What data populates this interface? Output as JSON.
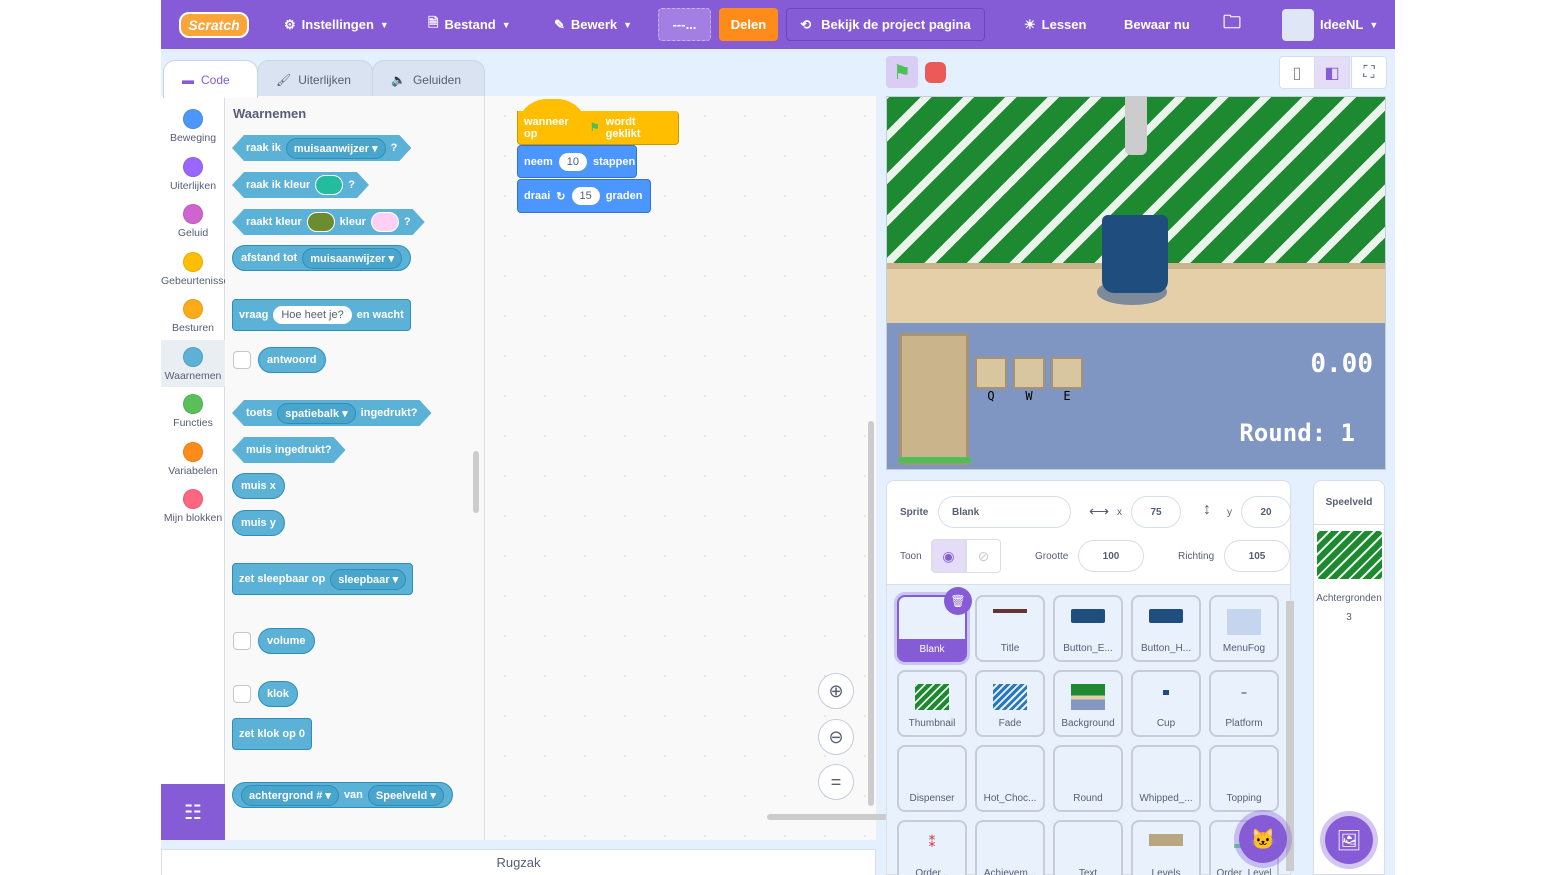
{
  "menu": {
    "logo": "Scratch",
    "settings": "Instellingen",
    "file": "Bestand",
    "edit": "Bewerk",
    "title_field": "---...",
    "share": "Delen",
    "project_page": "Bekijk de project pagina",
    "tutorials": "Lessen",
    "save": "Bewaar nu",
    "user": "IdeeNL"
  },
  "tabs": [
    {
      "label": "Code"
    },
    {
      "label": "Uiterlijken"
    },
    {
      "label": "Geluiden"
    }
  ],
  "categories": [
    {
      "label": "Beweging",
      "color": "#4c97ff"
    },
    {
      "label": "Uiterlijken",
      "color": "#9966ff"
    },
    {
      "label": "Geluid",
      "color": "#cf63cf"
    },
    {
      "label": "Gebeurtenissen",
      "color": "#ffbf00"
    },
    {
      "label": "Besturen",
      "color": "#ffab19"
    },
    {
      "label": "Waarnemen",
      "color": "#5cb1d6"
    },
    {
      "label": "Functies",
      "color": "#59c059"
    },
    {
      "label": "Variabelen",
      "color": "#ff8c1a"
    },
    {
      "label": "Mijn blokken",
      "color": "#ff6680"
    }
  ],
  "palette": {
    "heading": "Waarnemen",
    "touching": {
      "a": "raak ik",
      "dd": "muisaanwijzer",
      "q": "?"
    },
    "touching_color": {
      "a": "raak ik kleur",
      "color": "#24bc9e",
      "q": "?"
    },
    "color_touching": {
      "a": "raakt kleur",
      "color1": "#6b8c2f",
      "b": "kleur",
      "color2": "#ffd0f4",
      "q": "?"
    },
    "distance": {
      "a": "afstand tot",
      "dd": "muisaanwijzer"
    },
    "ask": {
      "a": "vraag",
      "input": "Hoe heet je?",
      "b": "en wacht"
    },
    "answer": "antwoord",
    "key": {
      "a": "toets",
      "dd": "spatiebalk",
      "b": "ingedrukt?"
    },
    "mouse_down": "muis ingedrukt?",
    "mouse_x": "muis x",
    "mouse_y": "muis y",
    "drag": {
      "a": "zet sleepbaar op",
      "dd": "sleepbaar"
    },
    "loudness": "volume",
    "timer": "klok",
    "reset_timer": "zet klok op 0",
    "backdrop": {
      "dd": "achtergrond #",
      "a": "van",
      "dd2": "Speelveld"
    }
  },
  "script": {
    "hat": {
      "a": "wanneer op",
      "b": "wordt geklikt"
    },
    "move": {
      "a": "neem",
      "val": "10",
      "b": "stappen"
    },
    "turn": {
      "a": "draai",
      "val": "15",
      "b": "graden"
    }
  },
  "rugzak": "Rugzak",
  "stage_view": {
    "timer": "0.00",
    "round": "Round: 1",
    "keys": [
      "Q",
      "W",
      "E"
    ]
  },
  "sprite_info": {
    "sprite_label": "Sprite",
    "sprite_name": "Blank",
    "x_label": "x",
    "x": "75",
    "y_label": "y",
    "y": "20",
    "show_label": "Toon",
    "size_label": "Grootte",
    "size": "100",
    "direction_label": "Richting",
    "direction": "105"
  },
  "sprites": [
    "Blank",
    "Title",
    "Button_E...",
    "Button_H...",
    "MenuFog",
    "Thumbnail",
    "Fade",
    "Background",
    "Cup",
    "Platform",
    "Dispenser",
    "Hot_Choc...",
    "Round",
    "Whipped_...",
    "Topping",
    "Order...",
    "Achievem...",
    "Text",
    "Levels",
    "Order_Level"
  ],
  "stage_panel": {
    "title": "Speelveld",
    "backdrops_label": "Achtergronden",
    "backdrops_count": "3"
  },
  "colors": {
    "accent": "#855cd6",
    "share": "#ff8c1a",
    "sensing": "#5cb1d6",
    "motion": "#4c97ff",
    "events": "#ffbf00"
  }
}
